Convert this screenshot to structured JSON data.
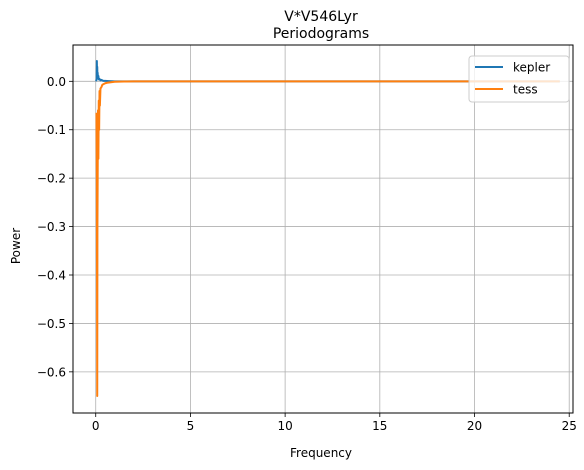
{
  "chart_data": {
    "type": "line",
    "title": "V*V546Lyr",
    "subtitle": "Periodograms",
    "xlabel": "Frequency",
    "ylabel": "Power",
    "xlim": [
      -1.2,
      25.2
    ],
    "ylim": [
      -0.685,
      0.075
    ],
    "xticks": [
      0,
      5,
      10,
      15,
      20,
      25
    ],
    "xtick_labels": [
      "0",
      "5",
      "10",
      "15",
      "20",
      "25"
    ],
    "yticks": [
      0.0,
      -0.1,
      -0.2,
      -0.3,
      -0.4,
      -0.5,
      -0.6
    ],
    "ytick_labels": [
      "0.0",
      "−0.1",
      "−0.2",
      "−0.3",
      "−0.4",
      "−0.5",
      "−0.6"
    ],
    "grid": true,
    "legend_position": "top-right",
    "series": [
      {
        "name": "kepler",
        "color": "#1f77b4",
        "x": [
          0.02,
          0.05,
          0.06,
          0.07,
          0.08,
          0.09,
          0.1,
          0.12,
          0.14,
          0.16,
          0.2,
          0.25,
          0.3,
          0.4,
          0.5,
          0.7,
          1.0,
          2.0,
          5.0,
          10.0,
          15.0,
          20.0,
          24.5
        ],
        "y": [
          0.0,
          0.005,
          0.042,
          0.01,
          0.03,
          0.008,
          0.018,
          0.006,
          0.011,
          0.004,
          0.005,
          0.002,
          0.003,
          0.001,
          0.001,
          0.0005,
          0.0,
          0.0,
          0.0,
          0.0,
          0.0,
          0.0,
          0.0
        ]
      },
      {
        "name": "tess",
        "color": "#ff7f0e",
        "x": [
          0.04,
          0.06,
          0.08,
          0.09,
          0.1,
          0.12,
          0.14,
          0.16,
          0.18,
          0.2,
          0.22,
          0.25,
          0.3,
          0.35,
          0.4,
          0.5,
          0.6,
          0.8,
          1.0,
          1.5,
          2.0,
          5.0,
          10.0,
          15.0,
          20.0,
          24.5
        ],
        "y": [
          -0.065,
          -0.2,
          -0.65,
          -0.3,
          -0.22,
          -0.06,
          -0.16,
          -0.04,
          -0.1,
          -0.02,
          -0.05,
          -0.015,
          -0.012,
          -0.007,
          -0.006,
          -0.004,
          -0.003,
          -0.002,
          -0.001,
          -0.0005,
          0.0,
          0.0,
          0.0,
          0.0,
          0.0,
          0.0
        ]
      }
    ]
  }
}
